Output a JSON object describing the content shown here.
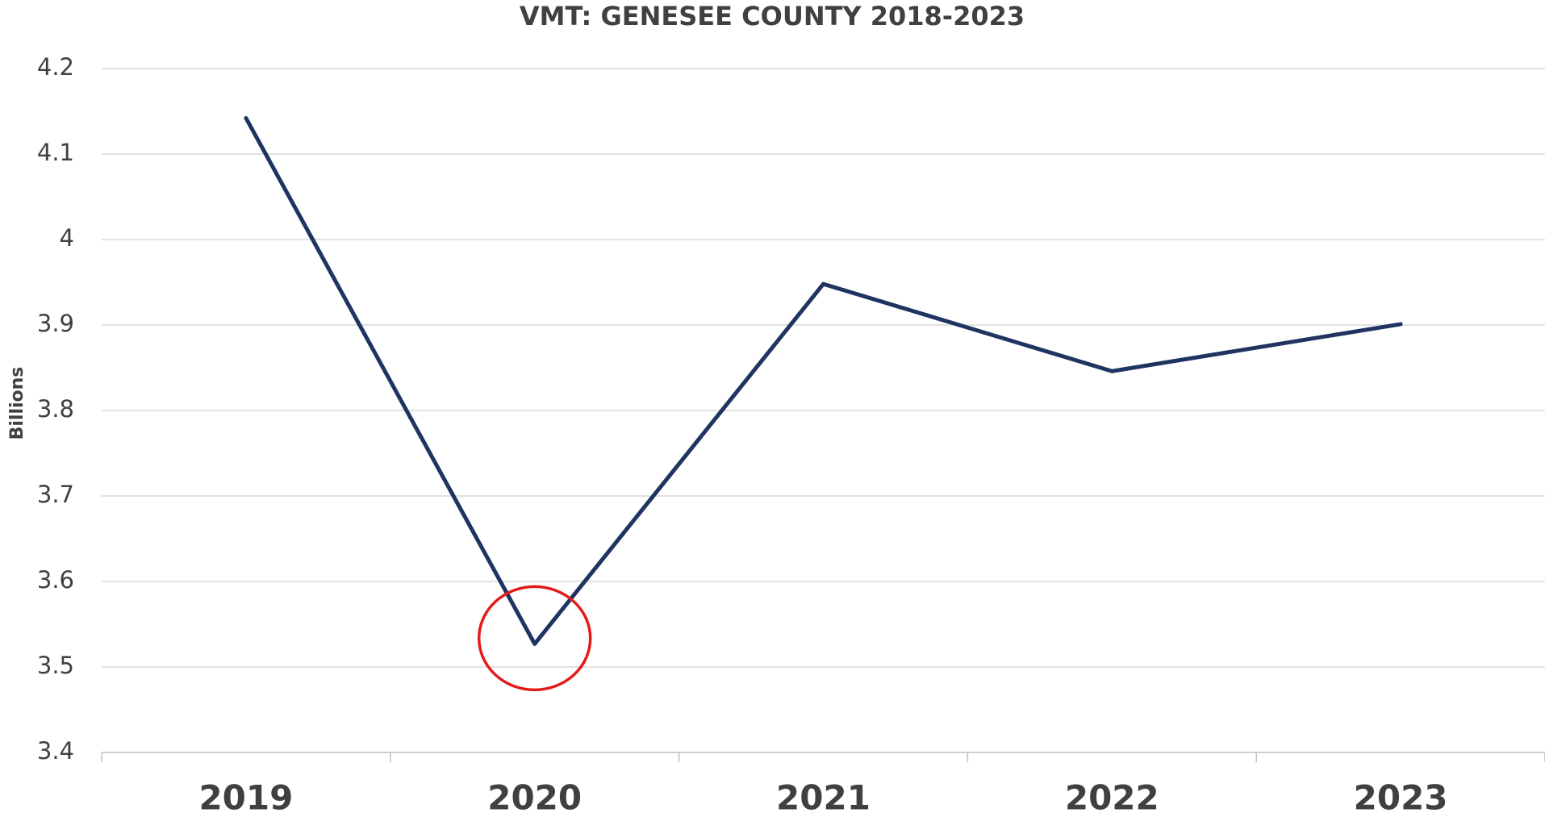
{
  "chart_data": {
    "type": "line",
    "title": "VMT: GENESEE COUNTY 2018-2023",
    "y_label": "Billions",
    "categories": [
      "2019",
      "2020",
      "2021",
      "2022",
      "2023"
    ],
    "series": [
      {
        "name": "VMT",
        "color": "#1f3461",
        "values": [
          4.142,
          3.527,
          3.948,
          3.846,
          3.901
        ]
      }
    ],
    "ylim": [
      3.4,
      4.2
    ],
    "yticks": [
      3.4,
      3.5,
      3.6,
      3.7,
      3.8,
      3.9,
      4,
      4.1,
      4.2
    ],
    "grid": true
  }
}
